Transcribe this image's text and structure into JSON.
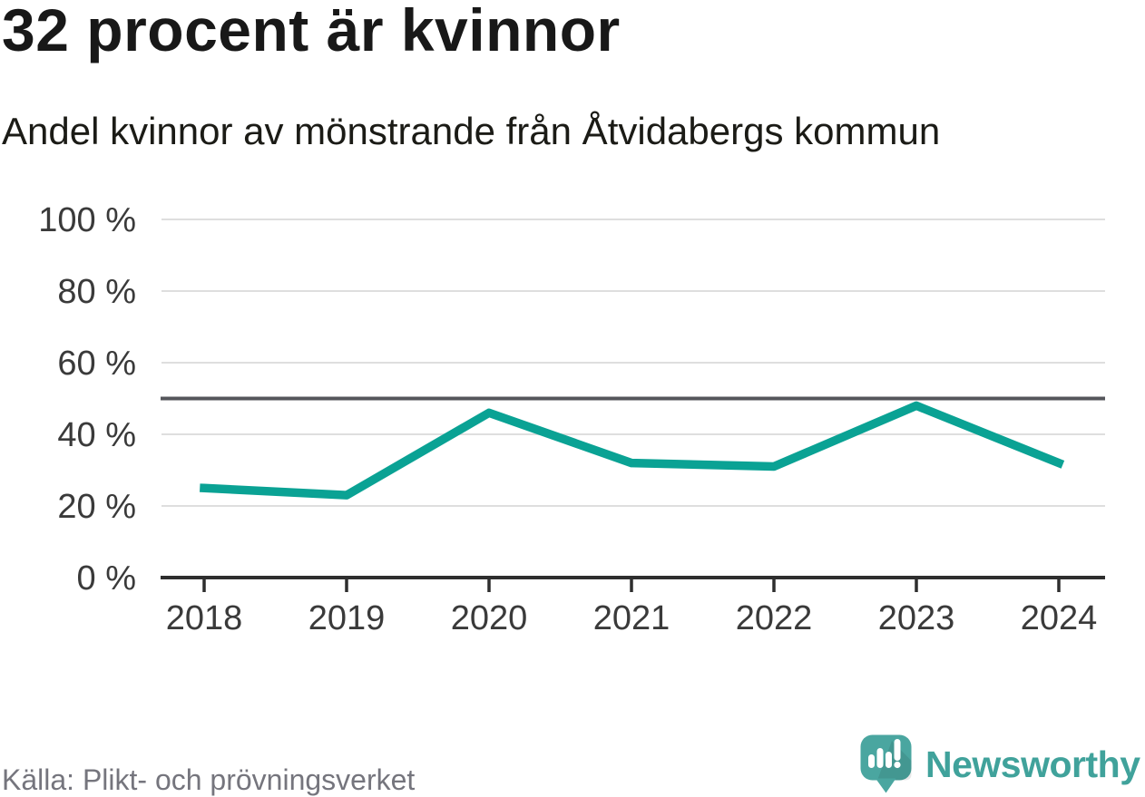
{
  "header": {
    "title": "32 procent är kvinnor",
    "subtitle": "Andel kvinnor av mönstrande från Åtvidabergs kommun"
  },
  "footer": {
    "source": "Källa: Plikt- och prövningsverket",
    "brand": "Newsworthy",
    "logo_icon": "speech-bubble-bar-chart-icon"
  },
  "colors": {
    "line": "#0aa294",
    "reference_line": "#55565b",
    "gridline": "#dedede",
    "axis": "#2e2e2e",
    "tick_label": "#3a3a3a",
    "title_text": "#181818",
    "source_text": "#75757d",
    "brand_teal": "#40a29b",
    "logo_bubble": "#4aa6a0"
  },
  "chart_data": {
    "type": "line",
    "title": "32 procent är kvinnor",
    "subtitle": "Andel kvinnor av mönstrande från Åtvidabergs kommun",
    "x": [
      2018,
      2019,
      2020,
      2021,
      2022,
      2023,
      2024
    ],
    "series": [
      {
        "name": "Andel kvinnor av mönstrande",
        "values": [
          25,
          23,
          46,
          32,
          31,
          48,
          32
        ],
        "color": "#0aa294"
      }
    ],
    "reference_line": {
      "value": 50,
      "color": "#55565b"
    },
    "ylim": [
      0,
      100
    ],
    "yticks": [
      0,
      20,
      40,
      60,
      80,
      100
    ],
    "ytick_suffix": " %",
    "grid": true,
    "legend": "none",
    "source": "Källa: Plikt- och prövningsverket"
  }
}
